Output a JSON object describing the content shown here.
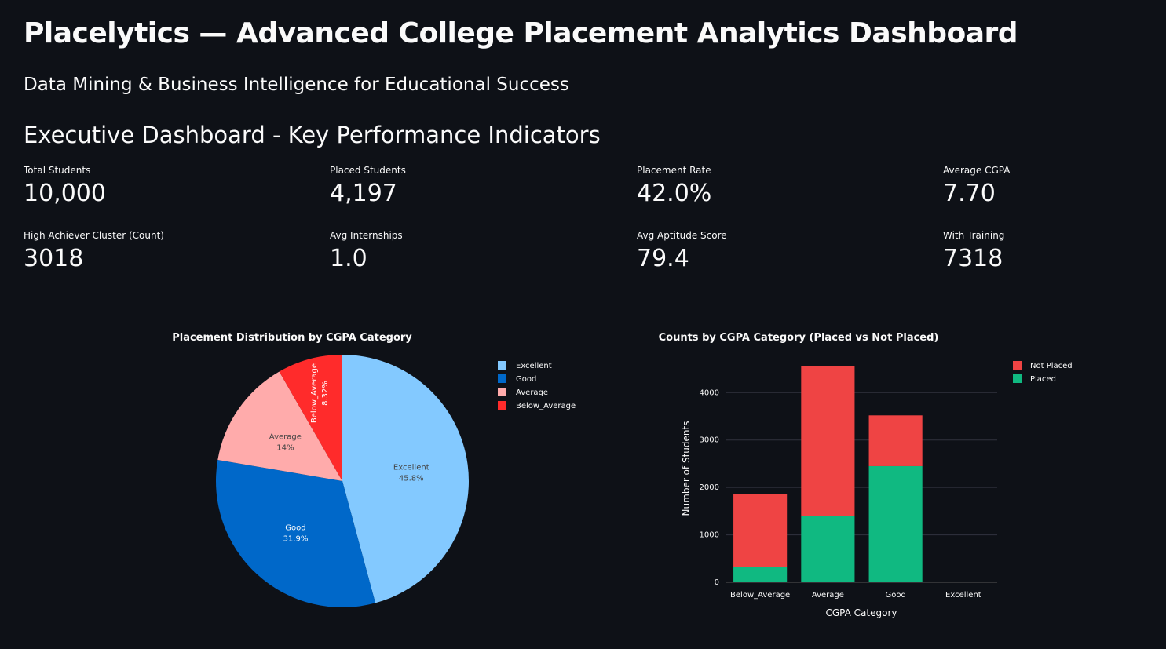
{
  "header": {
    "title": "Placelytics — Advanced College Placement Analytics Dashboard",
    "subtitle": "Data Mining & Business Intelligence for Educational Success",
    "section_title": "Executive Dashboard - Key Performance Indicators"
  },
  "metrics": [
    {
      "label": "Total Students",
      "value": "10,000"
    },
    {
      "label": "Placed Students",
      "value": "4,197"
    },
    {
      "label": "Placement Rate",
      "value": "42.0%"
    },
    {
      "label": "Average CGPA",
      "value": "7.70"
    },
    {
      "label": "High Achiever Cluster (Count)",
      "value": "3018"
    },
    {
      "label": "Avg Internships",
      "value": "1.0"
    },
    {
      "label": "Avg Aptitude Score",
      "value": "79.4"
    },
    {
      "label": "With Training",
      "value": "7318"
    }
  ],
  "colors": {
    "background": "#0e1117",
    "excellent": "#83c9ff",
    "good": "#0068c9",
    "average": "#ffabab",
    "below_average": "#ff2b2b",
    "not_placed": "#ef4444",
    "placed": "#10b981"
  },
  "chart_data": [
    {
      "type": "pie",
      "title": "Placement Distribution by CGPA Category",
      "categories": [
        "Excellent",
        "Good",
        "Average",
        "Below_Average"
      ],
      "values": [
        45.8,
        31.9,
        14.0,
        8.32
      ],
      "labels": [
        "45.8%",
        "31.9%",
        "14%",
        "8.32%"
      ],
      "legend": [
        "Excellent",
        "Good",
        "Average",
        "Below_Average"
      ],
      "legend_position": "top-right"
    },
    {
      "type": "bar",
      "stacked": true,
      "title": "Counts by CGPA Category (Placed vs Not Placed)",
      "xlabel": "CGPA Category",
      "ylabel": "Number of Students",
      "categories": [
        "Below_Average",
        "Average",
        "Good",
        "Excellent"
      ],
      "series": [
        {
          "name": "Placed",
          "values": [
            330,
            1400,
            2450,
            0
          ]
        },
        {
          "name": "Not Placed",
          "values": [
            1530,
            3160,
            1070,
            0
          ]
        }
      ],
      "yticks": [
        "0",
        "1000",
        "2000",
        "3000",
        "4000"
      ],
      "ylim": [
        0,
        4700
      ],
      "legend": [
        "Not Placed",
        "Placed"
      ],
      "legend_position": "top-right",
      "grid": true
    }
  ]
}
